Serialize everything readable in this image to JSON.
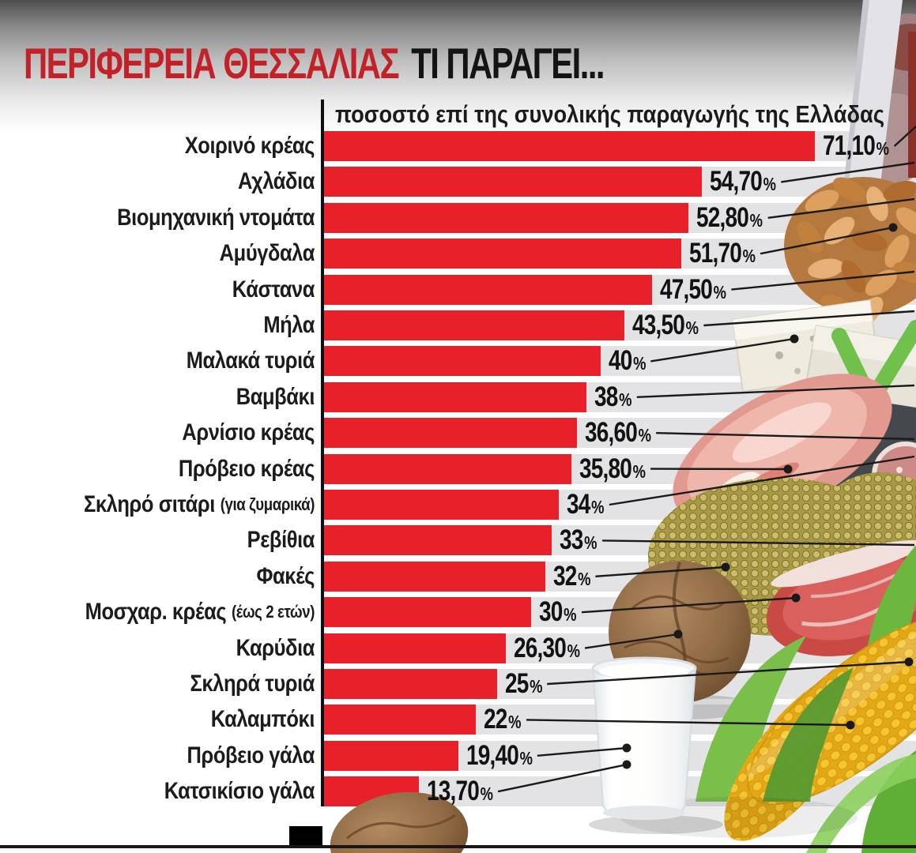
{
  "page": {
    "title_region": "ΠΕΡΙΦΕΡΕΙΑ ΘΕΣΣΑΛΙΑΣ",
    "title_suffix": "ΤΙ ΠΑΡΑΓΕΙ...",
    "subtitle": "ποσοστό επί της συνολικής παραγωγής της Ελλάδας"
  },
  "colors": {
    "bar_red": "#e8202a",
    "track_gray": "#e3e3e6",
    "title_red": "#c22127",
    "title_black": "#141414",
    "text_black": "#1c1c1c",
    "line_black": "#1a1a1a"
  },
  "chart_data": {
    "type": "bar",
    "orientation": "horizontal",
    "value_unit": "%",
    "value_format": "comma-decimal",
    "xlim": [
      0,
      75
    ],
    "grid": false,
    "legend": "none",
    "title": "ΠΕΡΙΦΕΡΕΙΑ ΘΕΣΣΑΛΙΑΣ ΤΙ ΠΑΡΑΓΕΙ...",
    "subtitle": "ποσοστό επί της συνολικής παραγωγής της Ελλάδας",
    "rows": [
      {
        "label": "Χοιρινό κρέας",
        "note": "",
        "value": 71.1,
        "display": "71,10"
      },
      {
        "label": "Αχλάδια",
        "note": "",
        "value": 54.7,
        "display": "54,70"
      },
      {
        "label": "Βιομηχανική ντομάτα",
        "note": "",
        "value": 52.8,
        "display": "52,80"
      },
      {
        "label": "Αμύγδαλα",
        "note": "",
        "value": 51.7,
        "display": "51,70"
      },
      {
        "label": "Κάστανα",
        "note": "",
        "value": 47.5,
        "display": "47,50"
      },
      {
        "label": "Μήλα",
        "note": "",
        "value": 43.5,
        "display": "43,50"
      },
      {
        "label": "Μαλακά τυριά",
        "note": "",
        "value": 40,
        "display": "40"
      },
      {
        "label": "Βαμβάκι",
        "note": "",
        "value": 38,
        "display": "38"
      },
      {
        "label": "Αρνίσιο κρέας",
        "note": "",
        "value": 36.6,
        "display": "36,60"
      },
      {
        "label": "Πρόβειο κρέας",
        "note": "",
        "value": 35.8,
        "display": "35,80"
      },
      {
        "label": "Σκληρό σιτάρι",
        "note": "(για ζυμαρικά)",
        "value": 34,
        "display": "34"
      },
      {
        "label": "Ρεβίθια",
        "note": "",
        "value": 33,
        "display": "33"
      },
      {
        "label": "Φακές",
        "note": "",
        "value": 32,
        "display": "32"
      },
      {
        "label": "Μοσχαρ. κρέας",
        "note": "(έως 2 ετών)",
        "value": 30,
        "display": "30"
      },
      {
        "label": "Καρύδια",
        "note": "",
        "value": 26.3,
        "display": "26,30"
      },
      {
        "label": "Σκληρά τυριά",
        "note": "",
        "value": 25,
        "display": "25"
      },
      {
        "label": "Καλαμπόκι",
        "note": "",
        "value": 22,
        "display": "22"
      },
      {
        "label": "Πρόβειο γάλα",
        "note": "",
        "value": 19.4,
        "display": "19,40"
      },
      {
        "label": "Κατσικίσιο γάλα",
        "note": "",
        "value": 13.7,
        "display": "13,70"
      }
    ],
    "photo_items": [
      "pork-meat",
      "knife-blade",
      "almonds",
      "feta-cheese",
      "green-leaf",
      "pork-chop",
      "salami-slices",
      "legumes-pile",
      "walnut",
      "beef-steak",
      "corn-cob",
      "corn-husk-leaves",
      "milk-glass",
      "walnut-bottom"
    ]
  }
}
